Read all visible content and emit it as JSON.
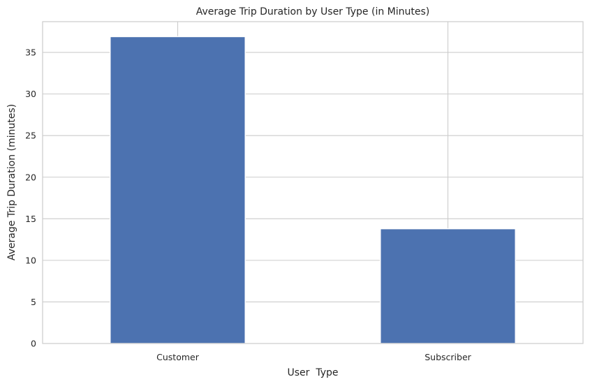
{
  "chart_data": {
    "type": "bar",
    "title": "Average Trip Duration by User Type (in Minutes)",
    "xlabel": "User  Type",
    "ylabel": "Average Trip Duration (minutes)",
    "categories": [
      "Customer",
      "Subscriber"
    ],
    "values": [
      36.9,
      13.8
    ],
    "ylim": [
      0,
      38.7
    ],
    "yticks": [
      0,
      5,
      10,
      15,
      20,
      25,
      30,
      35
    ],
    "grid": true,
    "legend": "none",
    "colors": {
      "bar": "#4c72b0",
      "grid": "#cccccc",
      "axes_edge": "#cccccc",
      "background": "#ffffff",
      "text": "#262626"
    }
  }
}
